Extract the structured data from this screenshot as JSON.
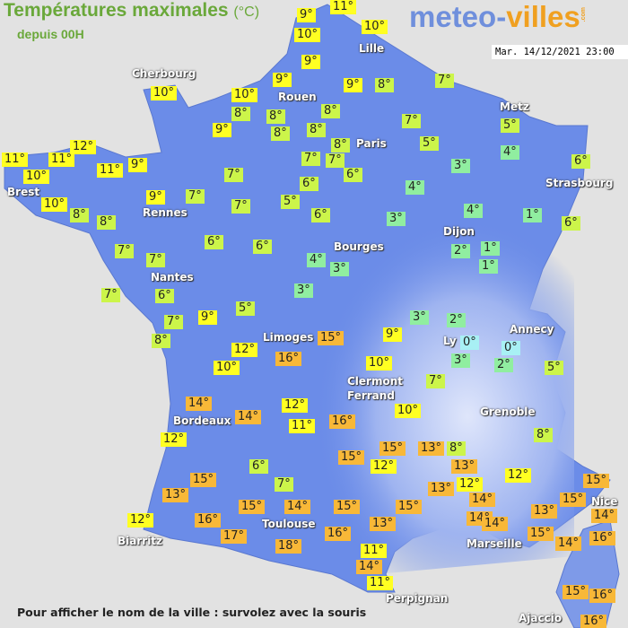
{
  "header": {
    "title": "Températures maximales",
    "unit": "(°C)",
    "subtitle": "depuis 00H",
    "logo_main": "meteo-",
    "logo_accent": "villes",
    "logo_suffix": ".com",
    "datetime": "Mar. 14/12/2021 23:00"
  },
  "footer": {
    "hint": "Pour afficher le nom de la ville : survolez avec la souris"
  },
  "colors": {
    "land": "#6b8ce8",
    "sea": "#e2e2e2",
    "cold_0": "#a8f0f4",
    "cool_1_4": "#90eea0",
    "mild_5_8": "#ccf54a",
    "warm_9_12": "#ffff22",
    "hot_13_plus": "#f8b838"
  },
  "cities": [
    "Lille",
    "Cherbourg",
    "Rouen",
    "Metz",
    "Paris",
    "Brest",
    "Strasbourg",
    "Rennes",
    "Dijon",
    "Bourges",
    "Nantes",
    "Limoges",
    "Ly",
    "Annecy",
    "Clermont",
    "Ferrand",
    "Grenoble",
    "Bordeaux",
    "Toulouse",
    "Biarritz",
    "Marseille",
    "Nice",
    "Perpignan",
    "Ajaccio"
  ],
  "temperatures": [
    "9°",
    "11°",
    "10°",
    "10°",
    "9°",
    "9°",
    "9°",
    "8°",
    "7°",
    "10°",
    "10°",
    "8°",
    "8°",
    "8°",
    "9°",
    "8°",
    "8°",
    "8°",
    "7°",
    "5°",
    "5°",
    "12°",
    "11°",
    "11°",
    "10°",
    "11°",
    "9°",
    "7°",
    "7°",
    "6°",
    "7°",
    "3°",
    "4°",
    "6°",
    "6°",
    "9°",
    "7°",
    "7°",
    "5°",
    "4°",
    "10°",
    "8°",
    "8°",
    "6°",
    "3°",
    "4°",
    "1°",
    "6°",
    "7°",
    "7°",
    "6°",
    "6°",
    "4°",
    "3°",
    "2°",
    "1°",
    "1°",
    "7°",
    "6°",
    "3°",
    "5°",
    "9°",
    "7°",
    "3°",
    "2°",
    "8°",
    "15°",
    "9°",
    "0°",
    "0°",
    "12°",
    "16°",
    "3°",
    "2°",
    "5°",
    "10°",
    "10°",
    "7°",
    "14°",
    "10°",
    "14°",
    "12°",
    "16°",
    "11°",
    "8°",
    "12°",
    "15°",
    "13°",
    "8°",
    "15°",
    "12°",
    "13°",
    "6°",
    "12°",
    "15°",
    "7°",
    "13°",
    "13°",
    "12°",
    "15°",
    "15°",
    "15°",
    "14°",
    "15°",
    "15°",
    "14°",
    "14°",
    "13°",
    "14°",
    "12°",
    "16°",
    "17°",
    "13°",
    "14°",
    "16°",
    "15°",
    "14°",
    "16°",
    "18°",
    "11°",
    "14°",
    "11°",
    "15°",
    "16°",
    "16°"
  ]
}
